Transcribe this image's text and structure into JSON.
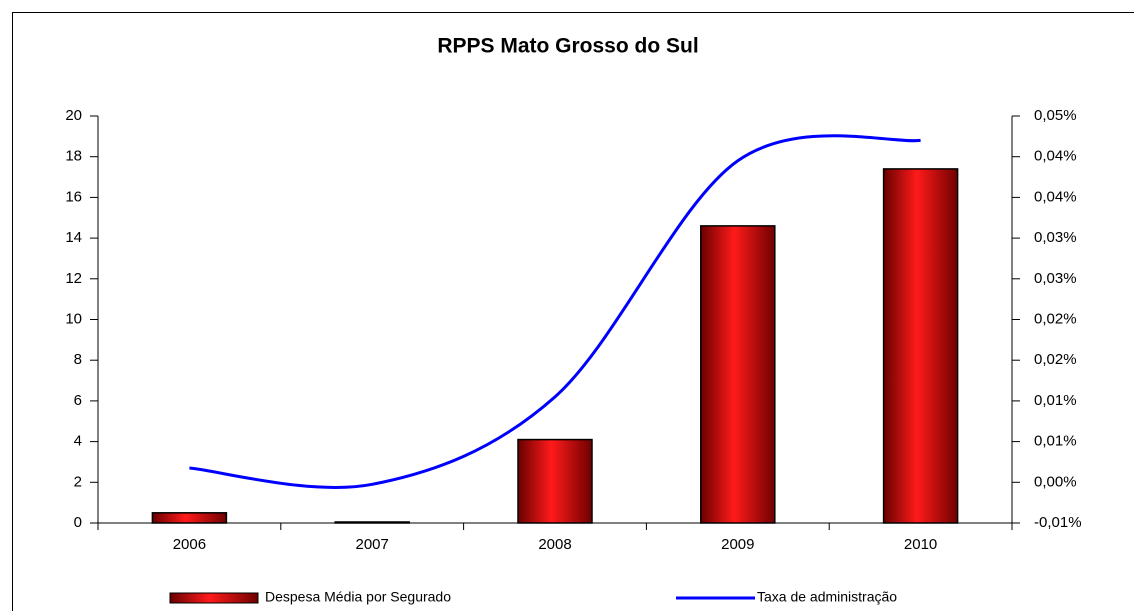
{
  "chart_data": {
    "type": "bar",
    "title": "RPPS Mato Grosso do Sul",
    "categories": [
      "2006",
      "2007",
      "2008",
      "2009",
      "2010"
    ],
    "series": [
      {
        "name": "Despesa Média por Segurado",
        "color": "#cc0000",
        "type": "bar",
        "values": [
          0.5,
          0.05,
          4.1,
          14.6,
          17.4
        ]
      },
      {
        "name": "Taxa de administração",
        "color": "#0000ff",
        "type": "line",
        "axis": "y2",
        "values": [
          0.00175,
          -0.00025,
          0.0105,
          0.0395,
          0.042
        ]
      }
    ],
    "ylim": [
      0,
      20
    ],
    "yticks": [
      0,
      2,
      4,
      6,
      8,
      10,
      12,
      14,
      16,
      18,
      20
    ],
    "y2lim": [
      -0.005,
      0.045
    ],
    "y2ticks": [
      {
        "value": -0.005,
        "label": "-0,01%"
      },
      {
        "value": 0,
        "label": "0,00%"
      },
      {
        "value": 0.005,
        "label": "0,01%"
      },
      {
        "value": 0.01,
        "label": "0,01%"
      },
      {
        "value": 0.015,
        "label": "0,02%"
      },
      {
        "value": 0.02,
        "label": "0,02%"
      },
      {
        "value": 0.025,
        "label": "0,03%"
      },
      {
        "value": 0.03,
        "label": "0,03%"
      },
      {
        "value": 0.035,
        "label": "0,04%"
      },
      {
        "value": 0.04,
        "label": "0,04%"
      },
      {
        "value": 0.045,
        "label": "0,05%"
      }
    ],
    "legend": "bottom",
    "grid": false
  }
}
